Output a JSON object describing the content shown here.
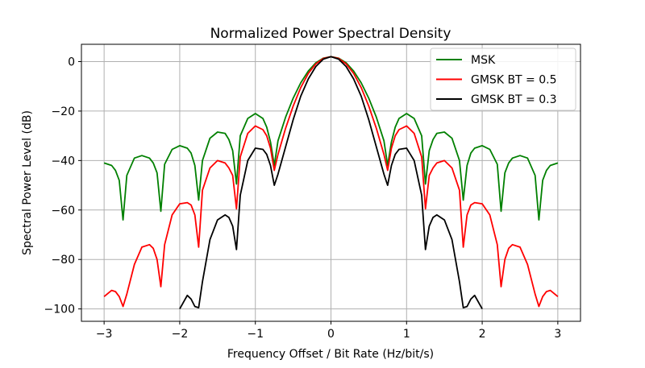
{
  "chart_data": {
    "type": "line",
    "title": "Normalized Power Spectral Density",
    "xlabel": "Frequency Offset / Bit Rate (Hz/bit/s)",
    "ylabel": "Spectral Power Level (dB)",
    "xlim": [
      -3.3,
      3.3
    ],
    "ylim": [
      -105,
      7
    ],
    "xticks": [
      -3,
      -2,
      -1,
      0,
      1,
      2,
      3
    ],
    "xtick_labels": [
      "−3",
      "−2",
      "−1",
      "0",
      "1",
      "2",
      "3"
    ],
    "yticks": [
      0,
      -20,
      -40,
      -60,
      -80,
      -100
    ],
    "ytick_labels": [
      "0",
      "−20",
      "−40",
      "−60",
      "−80",
      "−100"
    ],
    "grid": true,
    "legend_position": "top-right",
    "series": [
      {
        "name": "MSK",
        "color": "#008000",
        "x": [
          0,
          0.1,
          0.2,
          0.3,
          0.4,
          0.5,
          0.6,
          0.7,
          0.75,
          0.8,
          0.85,
          0.9,
          1.0,
          1.1,
          1.2,
          1.25,
          1.3,
          1.35,
          1.4,
          1.5,
          1.6,
          1.7,
          1.75,
          1.8,
          1.85,
          1.9,
          2.0,
          2.1,
          2.2,
          2.25,
          2.3,
          2.35,
          2.4,
          2.5,
          2.6,
          2.7,
          2.75,
          2.8,
          2.85,
          2.9,
          3.0
        ],
        "y": [
          2,
          1.4,
          -0.5,
          -3.8,
          -8.6,
          -14.8,
          -22.5,
          -32,
          -42,
          -32.5,
          -26.5,
          -23,
          -21,
          -23,
          -30,
          -49.5,
          -36,
          -31.5,
          -29,
          -28.5,
          -31,
          -40,
          -56,
          -42,
          -37,
          -35,
          -34,
          -35.5,
          -41.5,
          -60.5,
          -45,
          -41,
          -39,
          -38,
          -39,
          -46,
          -64,
          -48,
          -44,
          -42,
          -41
        ]
      },
      {
        "name": "GMSK BT = 0.5",
        "color": "#ff0000",
        "x": [
          0,
          0.1,
          0.2,
          0.3,
          0.4,
          0.5,
          0.6,
          0.7,
          0.75,
          0.8,
          0.85,
          0.9,
          1.0,
          1.1,
          1.2,
          1.25,
          1.3,
          1.35,
          1.4,
          1.5,
          1.6,
          1.7,
          1.75,
          1.8,
          1.85,
          1.9,
          2.0,
          2.1,
          2.2,
          2.25,
          2.3,
          2.35,
          2.4,
          2.5,
          2.6,
          2.7,
          2.75,
          2.8,
          2.85,
          2.9,
          3.0
        ],
        "y": [
          2,
          1.3,
          -0.9,
          -4.8,
          -10.5,
          -18,
          -27,
          -37.5,
          -44,
          -35,
          -30,
          -27.5,
          -26,
          -29,
          -38.5,
          -59.5,
          -46,
          -43,
          -41,
          -40,
          -43,
          -52,
          -75,
          -62,
          -58,
          -57,
          -57.5,
          -62,
          -74,
          -91,
          -80,
          -75.5,
          -74,
          -75,
          -82,
          -94,
          -99,
          -95,
          -93,
          -92.5,
          -95
        ]
      },
      {
        "name": "GMSK BT = 0.3",
        "color": "#000000",
        "x": [
          0,
          0.1,
          0.2,
          0.3,
          0.4,
          0.5,
          0.6,
          0.7,
          0.75,
          0.8,
          0.85,
          0.9,
          1.0,
          1.1,
          1.2,
          1.25,
          1.3,
          1.35,
          1.4,
          1.5,
          1.6,
          1.7,
          1.75,
          1.8,
          1.85,
          1.9,
          2.0
        ],
        "y": [
          2,
          1,
          -2,
          -7,
          -14,
          -23.5,
          -34.5,
          -45.5,
          -50,
          -42,
          -37.5,
          -35.5,
          -35,
          -40,
          -54,
          -76,
          -66.5,
          -63,
          -62,
          -64,
          -72,
          -89,
          -99.5,
          -99,
          -96,
          -94.5,
          -100
        ]
      }
    ]
  }
}
